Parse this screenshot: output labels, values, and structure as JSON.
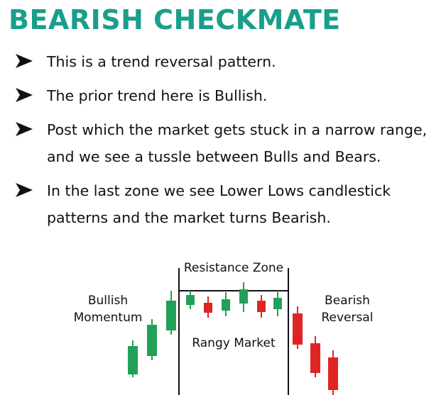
{
  "title": "BEARISH CHECKMATE",
  "bullets": [
    {
      "text": "This is a trend reversal pattern."
    },
    {
      "text": "The prior trend here is Bullish."
    },
    {
      "text": "Post which the market gets stuck in a narrow range, and we see a tussle between Bulls and Bears."
    },
    {
      "text": "In the last zone we see Lower Lows candlestick patterns and the market turns Bearish."
    }
  ],
  "diagram": {
    "resistance_label": "Resistance Zone",
    "bullish_label_line1": "Bullish",
    "bullish_label_line2": "Momentum",
    "rangy_label": "Rangy Market",
    "bearish_label_line1": "Bearish",
    "bearish_label_line2": "Reversal",
    "colors": {
      "bullish": "#22a05a",
      "bearish": "#e02424",
      "accent": "#1a9e8c",
      "line": "#111111"
    }
  }
}
